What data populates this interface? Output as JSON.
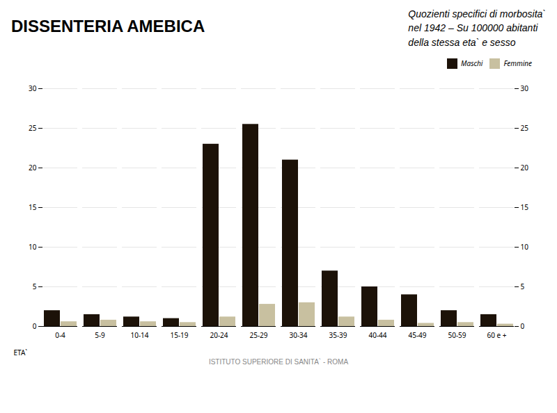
{
  "chart_data": {
    "type": "bar",
    "title": "DISSENTERIA  AMEBICA",
    "subtitle": "Quozienti specifici di morbosita`\nnel 1942 – Su 100000 abitanti\ndella stessa eta` e sesso",
    "caption": "ISTITUTO SUPERIORE DI SANITA` - ROMA",
    "xlabel": "ETA`",
    "categories": [
      "0-4",
      "5-9",
      "10-14",
      "15-19",
      "20-24",
      "25-29",
      "30-34",
      "35-39",
      "40-44",
      "45-49",
      "50-59",
      "60 e +"
    ],
    "series": [
      {
        "name": "Maschi",
        "color": "#1c1208",
        "values": [
          2.0,
          1.5,
          1.2,
          1.0,
          23.0,
          25.5,
          21.0,
          7.0,
          5.0,
          4.0,
          2.0,
          1.5
        ]
      },
      {
        "name": "Femmine",
        "color": "#c8c0a0",
        "values": [
          0.6,
          0.8,
          0.6,
          0.5,
          1.2,
          2.8,
          3.0,
          1.2,
          0.8,
          0.4,
          0.5,
          0.3
        ]
      }
    ],
    "ylim": [
      0,
      30
    ],
    "yticks": [
      0,
      5,
      10,
      15,
      20,
      25,
      30
    ],
    "grid": true,
    "legend": "upper right"
  }
}
